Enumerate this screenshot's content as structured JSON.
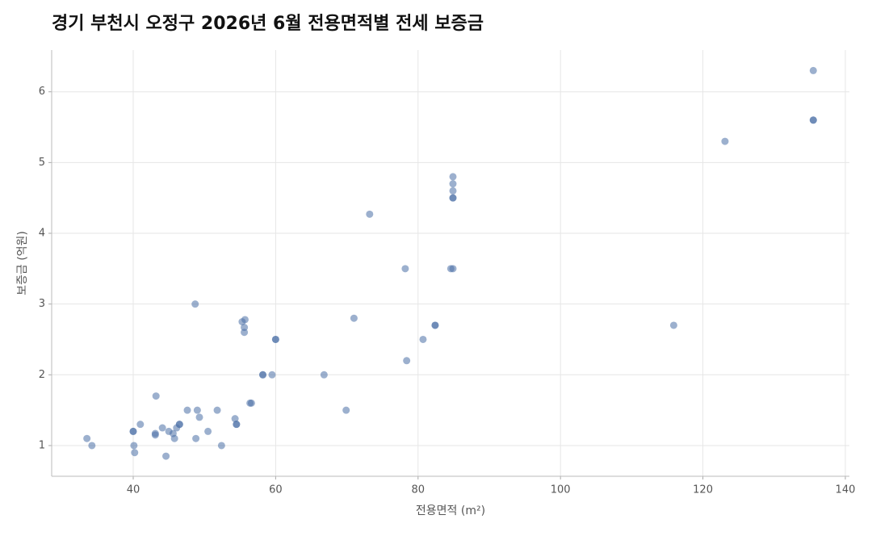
{
  "chart_data": {
    "type": "scatter",
    "title": "경기 부천시 오정구 2026년 6월 전용면적별 전세 보증금",
    "x_label": "전용면적 (m²)",
    "y_label": "보증금 (억원)",
    "x": [
      33.5,
      34.2,
      40,
      40,
      40.1,
      40.2,
      41,
      43.2,
      43.1,
      43.1,
      44.1,
      44.6,
      45,
      45.6,
      45.8,
      46.1,
      46.5,
      46.5,
      47.6,
      48.7,
      48.8,
      49,
      49.3,
      50.5,
      51.8,
      52.4,
      54.3,
      54.5,
      54.5,
      55.3,
      55.7,
      55.6,
      55.6,
      56.4,
      56.6,
      58.2,
      58.2,
      59.5,
      60,
      60,
      66.8,
      69.9,
      71,
      73.2,
      78.2,
      78.4,
      80.7,
      82.4,
      82.4,
      84.6,
      84.9,
      84.9,
      84.9,
      84.9,
      84.9,
      84.9,
      115.9,
      123.1,
      135.5,
      135.5,
      135.5
    ],
    "values": [
      1.1,
      1.0,
      1.2,
      1.2,
      1.0,
      0.9,
      1.3,
      1.7,
      1.17,
      1.15,
      1.25,
      0.85,
      1.2,
      1.17,
      1.1,
      1.25,
      1.3,
      1.3,
      1.5,
      3.0,
      1.1,
      1.5,
      1.4,
      1.2,
      1.5,
      1.0,
      1.38,
      1.3,
      1.3,
      2.75,
      2.78,
      2.67,
      2.6,
      1.6,
      1.6,
      2.0,
      2.0,
      2.0,
      2.5,
      2.5,
      2.0,
      1.5,
      2.8,
      4.27,
      3.5,
      2.2,
      2.5,
      2.7,
      2.7,
      3.5,
      3.5,
      4.8,
      4.7,
      4.6,
      4.5,
      4.5,
      2.7,
      5.3,
      6.3,
      5.6,
      5.6
    ],
    "color": "#4a6fa5",
    "xlim": [
      28.55,
      140.57
    ],
    "xticks": [
      40,
      60,
      80,
      100,
      120,
      140
    ],
    "ylim": [
      0.566,
      6.59
    ],
    "yticks": [
      1,
      2,
      3,
      4,
      5,
      6
    ],
    "grid": true
  }
}
